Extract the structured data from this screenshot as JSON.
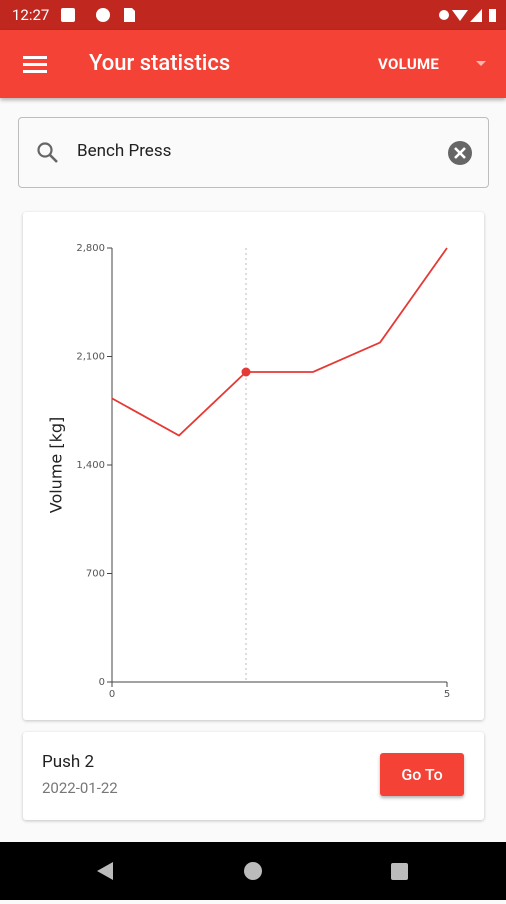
{
  "status_bar": {
    "time": "12:27"
  },
  "app_bar": {
    "title": "Your statistics",
    "metric": "VOLUME"
  },
  "search": {
    "query": "Bench Press"
  },
  "chart_data": {
    "type": "line",
    "y_label": "Volume [kg]",
    "x": [
      0,
      1,
      2,
      3,
      4,
      5
    ],
    "series": [
      {
        "color": "#e53935",
        "values": [
          1830,
          1590,
          2000,
          2000,
          2190,
          2800
        ]
      }
    ],
    "xlim": [
      0,
      5
    ],
    "ylim": [
      0,
      2800
    ],
    "xticks": [
      0,
      5
    ],
    "yticks": [
      0,
      700,
      {
        "value": 1400,
        "label": "1,400"
      },
      {
        "value": 2100,
        "label": "2,100"
      },
      {
        "value": 2800,
        "label": "2,800"
      }
    ],
    "highlight_x": 2
  },
  "selected": {
    "workout": "Push 2",
    "date": "2022-01-22",
    "button": "Go To"
  }
}
